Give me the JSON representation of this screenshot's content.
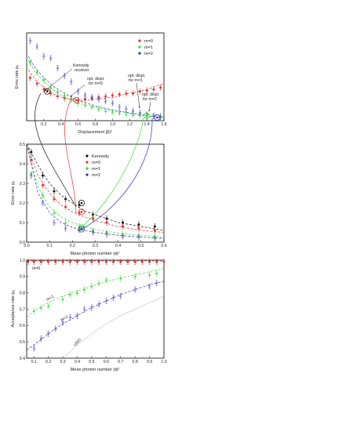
{
  "colors": {
    "m0": "#e53030",
    "m1": "#33dd33",
    "m2": "#2e2ebd",
    "kennedy": "#111111",
    "usd": "#aaaaaa"
  },
  "chart_data": [
    {
      "type": "scatter",
      "xlabel": "Displacement |β|²",
      "ylabel": "Error rate pₑ",
      "xlim": [
        0,
        1.6
      ],
      "ylim": [
        0.05,
        0.5
      ],
      "xticks": [
        "0.2",
        "0.4",
        "0.6",
        "0.8",
        "1.0",
        "1.2",
        "1.4",
        "1.6"
      ],
      "legend_position": "top-right",
      "legend": [
        "m=0",
        "m=1",
        "m=2"
      ],
      "annotations": [
        {
          "lines": [
            "Kennedy",
            "receiver"
          ]
        },
        {
          "lines": [
            "opt. displ.",
            "for m=0"
          ]
        },
        {
          "lines": [
            "opt. displ.",
            "for m=1"
          ]
        },
        {
          "lines": [
            "opt. displ.",
            "for m=2"
          ]
        }
      ],
      "series": [
        {
          "name": "m=0",
          "x": [
            0.04,
            0.12,
            0.2,
            0.28,
            0.36,
            0.44,
            0.52,
            0.6,
            0.68,
            0.76,
            0.84,
            0.92,
            1.0,
            1.08,
            1.16,
            1.24,
            1.32,
            1.4,
            1.48,
            1.56
          ],
          "y": [
            0.27,
            0.24,
            0.21,
            0.19,
            0.175,
            0.165,
            0.16,
            0.155,
            0.16,
            0.165,
            0.17,
            0.175,
            0.18,
            0.185,
            0.19,
            0.19,
            0.2,
            0.205,
            0.21,
            0.22
          ]
        },
        {
          "name": "m=1",
          "x": [
            0.04,
            0.12,
            0.2,
            0.28,
            0.36,
            0.44,
            0.52,
            0.6,
            0.68,
            0.76,
            0.84,
            0.92,
            1.0,
            1.08,
            1.16,
            1.24,
            1.32,
            1.4,
            1.48,
            1.56
          ],
          "y": [
            0.35,
            0.3,
            0.26,
            0.22,
            0.2,
            0.18,
            0.16,
            0.14,
            0.13,
            0.12,
            0.11,
            0.1,
            0.095,
            0.09,
            0.085,
            0.08,
            0.078,
            0.075,
            0.075,
            0.072
          ]
        },
        {
          "name": "m=2",
          "x": [
            0.04,
            0.12,
            0.2,
            0.28,
            0.36,
            0.44,
            0.52,
            0.6,
            0.68,
            0.76,
            0.84,
            0.92,
            1.0,
            1.08,
            1.16,
            1.24,
            1.32,
            1.4,
            1.48,
            1.56
          ],
          "y": [
            0.46,
            0.43,
            0.38,
            0.37,
            0.32,
            0.28,
            0.25,
            0.2,
            0.18,
            0.17,
            0.16,
            0.15,
            0.14,
            0.12,
            0.11,
            0.1,
            0.09,
            0.08,
            0.075,
            0.07
          ]
        }
      ],
      "fit_curves": [
        {
          "name": "m=0",
          "x": [
            0.02,
            0.1,
            0.2,
            0.3,
            0.4,
            0.5,
            0.6,
            0.7,
            0.8,
            0.9,
            1.0,
            1.1,
            1.2,
            1.3,
            1.4,
            1.5,
            1.6
          ],
          "y": [
            0.31,
            0.26,
            0.22,
            0.19,
            0.17,
            0.16,
            0.155,
            0.155,
            0.16,
            0.165,
            0.17,
            0.18,
            0.19,
            0.2,
            0.21,
            0.225,
            0.24
          ]
        },
        {
          "name": "m=1",
          "x": [
            0.02,
            0.1,
            0.2,
            0.3,
            0.4,
            0.5,
            0.6,
            0.7,
            0.8,
            0.9,
            1.0,
            1.1,
            1.2,
            1.3,
            1.4,
            1.5,
            1.6
          ],
          "y": [
            0.36,
            0.3,
            0.25,
            0.21,
            0.18,
            0.16,
            0.14,
            0.13,
            0.12,
            0.11,
            0.1,
            0.095,
            0.09,
            0.085,
            0.08,
            0.078,
            0.076
          ]
        },
        {
          "name": "m=2",
          "x": [
            0.02,
            0.1,
            0.2,
            0.3,
            0.4,
            0.5,
            0.6,
            0.7,
            0.8,
            0.9,
            1.0,
            1.1,
            1.2,
            1.3,
            1.4,
            1.5,
            1.6
          ],
          "y": [
            0.38,
            0.32,
            0.27,
            0.23,
            0.2,
            0.175,
            0.155,
            0.14,
            0.125,
            0.115,
            0.105,
            0.097,
            0.09,
            0.082,
            0.075,
            0.07,
            0.066
          ]
        }
      ],
      "highlighted_points": [
        {
          "series": "Kennedy",
          "x": 0.24,
          "y": 0.2
        },
        {
          "series": "m=0",
          "x": 0.58,
          "y": 0.155
        },
        {
          "series": "m=1",
          "x": 1.4,
          "y": 0.075
        },
        {
          "series": "m=2",
          "x": 1.52,
          "y": 0.066
        }
      ]
    },
    {
      "type": "scatter",
      "xlabel": "Mean photon number |α|²",
      "ylabel": "Error rate pₑ",
      "xlim": [
        0,
        0.6
      ],
      "ylim": [
        0,
        0.5
      ],
      "xticks": [
        "0.0",
        "0.1",
        "0.2",
        "0.3",
        "0.4",
        "0.5",
        "0.6"
      ],
      "yticks": [
        "0.0",
        "0.1",
        "0.2",
        "0.3",
        "0.4",
        "0.5"
      ],
      "legend_position": "top-right",
      "legend": [
        "Kennedy",
        "m=0",
        "m=1",
        "m=2"
      ],
      "series": [
        {
          "name": "Kennedy",
          "x": [
            0.02,
            0.07,
            0.12,
            0.17,
            0.23,
            0.29,
            0.35,
            0.42,
            0.49,
            0.56
          ],
          "y": [
            0.46,
            0.34,
            0.26,
            0.22,
            0.19,
            0.14,
            0.12,
            0.1,
            0.09,
            0.08
          ]
        },
        {
          "name": "m=0",
          "x": [
            0.02,
            0.07,
            0.12,
            0.17,
            0.23,
            0.29,
            0.35,
            0.42,
            0.49,
            0.56
          ],
          "y": [
            0.42,
            0.29,
            0.22,
            0.18,
            0.15,
            0.12,
            0.1,
            0.08,
            0.07,
            0.06
          ]
        },
        {
          "name": "m=1",
          "x": [
            0.02,
            0.07,
            0.12,
            0.17,
            0.23,
            0.29,
            0.35,
            0.42,
            0.49,
            0.56
          ],
          "y": [
            0.35,
            0.24,
            0.15,
            0.1,
            0.08,
            0.06,
            0.05,
            0.04,
            0.035,
            0.03
          ]
        },
        {
          "name": "m=2",
          "x": [
            0.02,
            0.07,
            0.12,
            0.17,
            0.23,
            0.29,
            0.35,
            0.42,
            0.49,
            0.56
          ],
          "y": [
            0.34,
            0.2,
            0.1,
            0.07,
            0.065,
            0.05,
            0.04,
            0.03,
            0.025,
            0.02
          ]
        }
      ],
      "fit_curves": [
        {
          "name": "Kennedy",
          "x": [
            0,
            0.05,
            0.1,
            0.15,
            0.2,
            0.25,
            0.3,
            0.35,
            0.4,
            0.45,
            0.5,
            0.55,
            0.6
          ],
          "y": [
            0.5,
            0.39,
            0.3,
            0.24,
            0.2,
            0.16,
            0.14,
            0.12,
            0.1,
            0.09,
            0.08,
            0.07,
            0.06
          ]
        },
        {
          "name": "m=0",
          "x": [
            0,
            0.05,
            0.1,
            0.15,
            0.2,
            0.25,
            0.3,
            0.35,
            0.4,
            0.45,
            0.5,
            0.55,
            0.6
          ],
          "y": [
            0.5,
            0.34,
            0.25,
            0.19,
            0.155,
            0.13,
            0.11,
            0.095,
            0.08,
            0.07,
            0.06,
            0.055,
            0.05
          ]
        },
        {
          "name": "m=1",
          "x": [
            0,
            0.05,
            0.1,
            0.15,
            0.2,
            0.25,
            0.3,
            0.35,
            0.4,
            0.45,
            0.5,
            0.55,
            0.6
          ],
          "y": [
            0.5,
            0.28,
            0.18,
            0.13,
            0.1,
            0.08,
            0.065,
            0.055,
            0.047,
            0.04,
            0.035,
            0.03,
            0.027
          ]
        },
        {
          "name": "m=2",
          "x": [
            0,
            0.05,
            0.1,
            0.15,
            0.2,
            0.25,
            0.3,
            0.35,
            0.4,
            0.45,
            0.5,
            0.55,
            0.6
          ],
          "y": [
            0.5,
            0.25,
            0.15,
            0.1,
            0.075,
            0.06,
            0.05,
            0.042,
            0.035,
            0.03,
            0.026,
            0.022,
            0.019
          ]
        }
      ],
      "highlighted_points": [
        {
          "series": "Kennedy",
          "x": 0.24,
          "y": 0.2
        },
        {
          "series": "m=0",
          "x": 0.24,
          "y": 0.155
        },
        {
          "series": "m=1",
          "x": 0.24,
          "y": 0.075
        },
        {
          "series": "m=2",
          "x": 0.24,
          "y": 0.066
        }
      ]
    },
    {
      "type": "scatter",
      "xlabel": "Mean photon number |α|²",
      "ylabel": "Acceptance rate pₐ",
      "xlim": [
        0.05,
        1.0
      ],
      "ylim": [
        0.4,
        1.0
      ],
      "xticks": [
        "0.1",
        "0.2",
        "0.3",
        "0.4",
        "0.5",
        "0.6",
        "0.7",
        "0.8",
        "0.9",
        "1.0"
      ],
      "yticks": [
        "0.4",
        "0.5",
        "0.6",
        "0.7",
        "0.8",
        "0.9",
        "1.0"
      ],
      "curve_labels": [
        "m=0",
        "m=1",
        "m=2",
        "USD"
      ],
      "series": [
        {
          "name": "m=0",
          "x": [
            0.06,
            0.1,
            0.15,
            0.2,
            0.25,
            0.3,
            0.35,
            0.4,
            0.45,
            0.5,
            0.55,
            0.6,
            0.65,
            0.7,
            0.75,
            0.8,
            0.85,
            0.9,
            0.95,
            1.0
          ],
          "y": [
            0.99,
            0.99,
            0.99,
            0.99,
            0.99,
            0.99,
            0.99,
            0.99,
            0.99,
            0.99,
            0.99,
            0.99,
            0.99,
            0.99,
            0.99,
            0.99,
            0.99,
            0.99,
            0.99,
            0.99
          ]
        },
        {
          "name": "m=1",
          "x": [
            0.1,
            0.15,
            0.2,
            0.3,
            0.35,
            0.4,
            0.45,
            0.5,
            0.55,
            0.6,
            0.7,
            0.8,
            0.9,
            0.95
          ],
          "y": [
            0.69,
            0.71,
            0.72,
            0.76,
            0.79,
            0.8,
            0.82,
            0.84,
            0.86,
            0.88,
            0.89,
            0.9,
            0.91,
            0.92
          ]
        },
        {
          "name": "m=2",
          "x": [
            0.1,
            0.15,
            0.2,
            0.25,
            0.3,
            0.35,
            0.4,
            0.45,
            0.5,
            0.55,
            0.6,
            0.65,
            0.7,
            0.8,
            0.9,
            0.95
          ],
          "y": [
            0.46,
            0.52,
            0.55,
            0.58,
            0.62,
            0.65,
            0.66,
            0.7,
            0.71,
            0.73,
            0.75,
            0.77,
            0.78,
            0.82,
            0.84,
            0.86
          ]
        }
      ],
      "fit_curves": [
        {
          "name": "m=0",
          "x": [
            0.05,
            1.0
          ],
          "y": [
            0.995,
            0.995
          ]
        },
        {
          "name": "m=1",
          "x": [
            0.05,
            0.1,
            0.2,
            0.3,
            0.4,
            0.5,
            0.6,
            0.7,
            0.8,
            0.9,
            1.0
          ],
          "y": [
            0.65,
            0.69,
            0.74,
            0.78,
            0.81,
            0.84,
            0.87,
            0.89,
            0.91,
            0.93,
            0.95
          ]
        },
        {
          "name": "m=2",
          "x": [
            0.05,
            0.1,
            0.2,
            0.3,
            0.4,
            0.5,
            0.6,
            0.7,
            0.8,
            0.9,
            1.0
          ],
          "y": [
            0.45,
            0.48,
            0.55,
            0.61,
            0.66,
            0.71,
            0.75,
            0.79,
            0.82,
            0.85,
            0.87
          ]
        },
        {
          "name": "USD",
          "x": [
            0.3,
            0.4,
            0.5,
            0.6,
            0.7,
            0.8,
            0.9,
            1.0
          ],
          "y": [
            0.4,
            0.48,
            0.55,
            0.61,
            0.66,
            0.7,
            0.74,
            0.78
          ]
        }
      ]
    }
  ]
}
